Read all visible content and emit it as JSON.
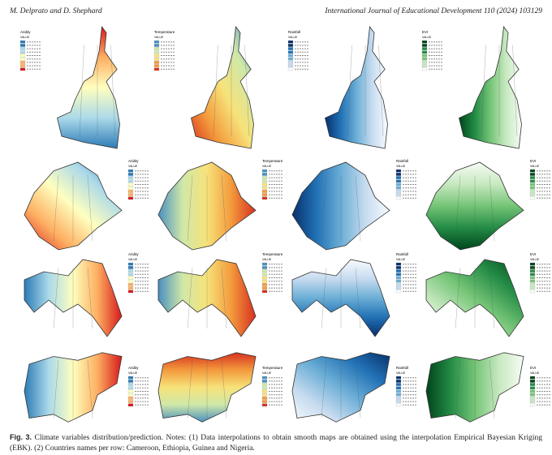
{
  "header": {
    "authors": "M. Delprato and D. Shephard",
    "journal": "International Journal of Educational Development 110 (2024) 103129"
  },
  "figure": {
    "legend_titles": [
      "Aridity",
      "Temperature",
      "Rainfall",
      "EVI"
    ],
    "legend_subtitle": "VALUE"
  },
  "caption": {
    "label": "Fig. 3.",
    "text": "Climate variables distribution/prediction. Notes: (1) Data interpolations to obtain smooth maps are obtained using the interpolation Empirical Bayesian Kriging (EBK). (2) Countries names per row: Cameroon, Ethiopia, Guinea and Nigeria."
  }
}
